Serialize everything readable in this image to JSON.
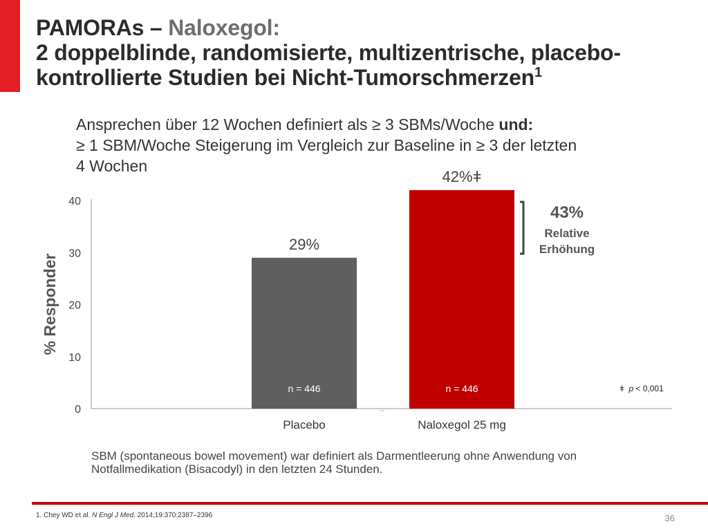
{
  "header": {
    "title_part1": "PAMORAs – ",
    "title_part2": "Naloxegol:",
    "title_line2": "2 doppelblinde, randomisierte, multizentrische, placebo-",
    "title_line3": "kontrollierte Studien bei Nicht-Tumorschmerzen",
    "title_sup": "1",
    "accent_color": "#e31e24"
  },
  "subtitle": {
    "line1": "Ansprechen über 12 Wochen definiert als ≥ 3 SBMs/Woche ",
    "line1_bold": "und:",
    "line2": "≥ 1 SBM/Woche Steigerung im Vergleich zur Baseline in ≥ 3 der letzten",
    "line3": "4 Wochen"
  },
  "chart_data": {
    "type": "bar",
    "title": "",
    "xlabel": "",
    "ylabel": "% Responder",
    "ylim": [
      0,
      40
    ],
    "yticks": [
      0,
      10,
      20,
      30,
      40
    ],
    "ytick_labels": [
      "0",
      "10",
      "20",
      "30",
      "40"
    ],
    "categories": [
      "Placebo",
      "Naloxegol 25 mg"
    ],
    "values": [
      29,
      42
    ],
    "value_labels": [
      "29%",
      "42%ǂ"
    ],
    "n_labels": [
      "n = 446",
      "n = 446"
    ],
    "bar_colors": [
      "#5f5f5f",
      "#c00000"
    ],
    "annotation": {
      "percent": "43%",
      "line1": "Relative",
      "line2": "Erhöhung",
      "color": "#555555"
    },
    "significance_symbol": "ǂ",
    "significance_p": "p",
    "significance_text": " < 0,001"
  },
  "footnotes": {
    "sbm_line1": "SBM (spontaneous bowel movement) war definiert als Darmentleerung ohne Anwendung von",
    "sbm_line2": "Notfallmedikation (Bisacodyl) in den letzten 24 Stunden.",
    "reference_prefix": "1. Chey WD et al. ",
    "reference_journal": "N Engl J Med.",
    "reference_suffix": " 2014;19:370:2387–2396",
    "page_number": "36"
  }
}
